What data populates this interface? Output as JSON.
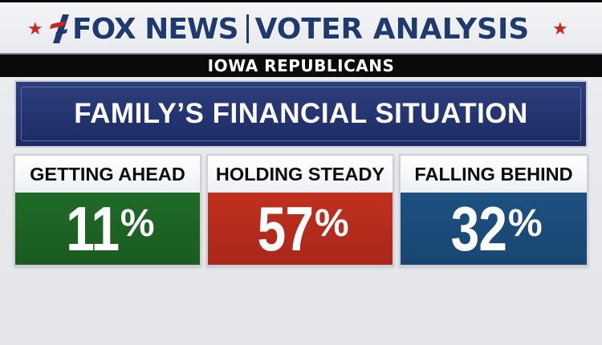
{
  "header": {
    "brand": "FOX NEWS",
    "title": "VOTER ANALYSIS",
    "star_icon": "star-icon",
    "logo_icon": "fox-news-logo-icon"
  },
  "subtitle": "IOWA REPUBLICANS",
  "question": "FAMILY’S FINANCIAL SITUATION",
  "results": [
    {
      "label": "GETTING AHEAD",
      "value": "11",
      "unit": "%"
    },
    {
      "label": "HOLDING STEADY",
      "value": "57",
      "unit": "%"
    },
    {
      "label": "FALLING BEHIND",
      "value": "32",
      "unit": "%"
    }
  ],
  "colors": {
    "brand_blue": "#1e3a6e",
    "star_red": "#c8281e",
    "getting_ahead": "#1f6b27",
    "holding_steady": "#c0301e",
    "falling_behind": "#1e5180",
    "question_bg": "#243470"
  }
}
